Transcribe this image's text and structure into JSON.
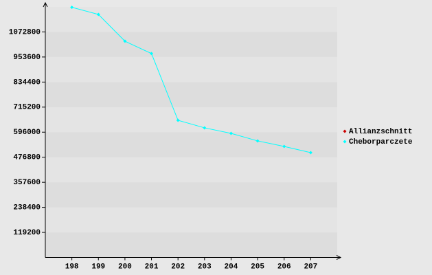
{
  "chart_data": {
    "type": "line",
    "x": [
      198,
      199,
      200,
      201,
      202,
      203,
      204,
      205,
      206,
      207
    ],
    "xlim": [
      197,
      208
    ],
    "xticks": [
      198,
      199,
      200,
      201,
      202,
      203,
      204,
      205,
      206,
      207
    ],
    "ylim": [
      0,
      1192000
    ],
    "yticks": [
      119200,
      238400,
      357600,
      476800,
      596000,
      715200,
      834400,
      953600,
      1072800
    ],
    "series": [
      {
        "name": "Allianzschnitt",
        "color": "#cc0000",
        "values": [
          null,
          null,
          null,
          null,
          null,
          null,
          null,
          null,
          null,
          null
        ]
      },
      {
        "name": "Cheborparczete",
        "color": "#00ffff",
        "values": [
          1190000,
          1156000,
          1028800,
          969900,
          652600,
          616600,
          590400,
          554500,
          528300,
          498800
        ]
      }
    ],
    "legend": "right"
  }
}
